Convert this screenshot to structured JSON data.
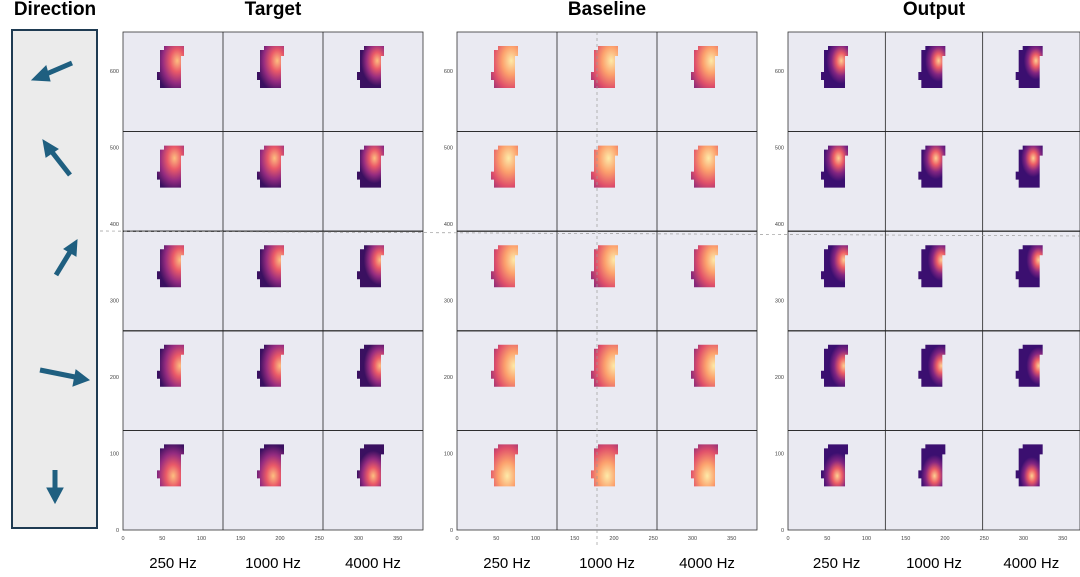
{
  "header": {
    "direction": "Direction"
  },
  "panels": [
    {
      "title": "Target",
      "yticks": [
        0,
        100,
        200,
        300,
        400,
        500,
        600
      ],
      "xticks": [
        0,
        50,
        100,
        150,
        200,
        250,
        300,
        350
      ],
      "frequencies": [
        "250 Hz",
        "1000 Hz",
        "4000 Hz"
      ]
    },
    {
      "title": "Baseline",
      "yticks": [
        0,
        100,
        200,
        300,
        400,
        500,
        600
      ],
      "xticks": [
        0,
        50,
        100,
        150,
        200,
        250,
        300,
        350
      ],
      "frequencies": [
        "250 Hz",
        "1000 Hz",
        "4000 Hz"
      ]
    },
    {
      "title": "Output",
      "yticks": [
        0,
        100,
        200,
        300,
        400,
        500,
        600
      ],
      "xticks": [
        0,
        50,
        100,
        150,
        200,
        250,
        300,
        350
      ],
      "frequencies": [
        "250 Hz",
        "1000 Hz",
        "4000 Hz"
      ]
    }
  ]
}
